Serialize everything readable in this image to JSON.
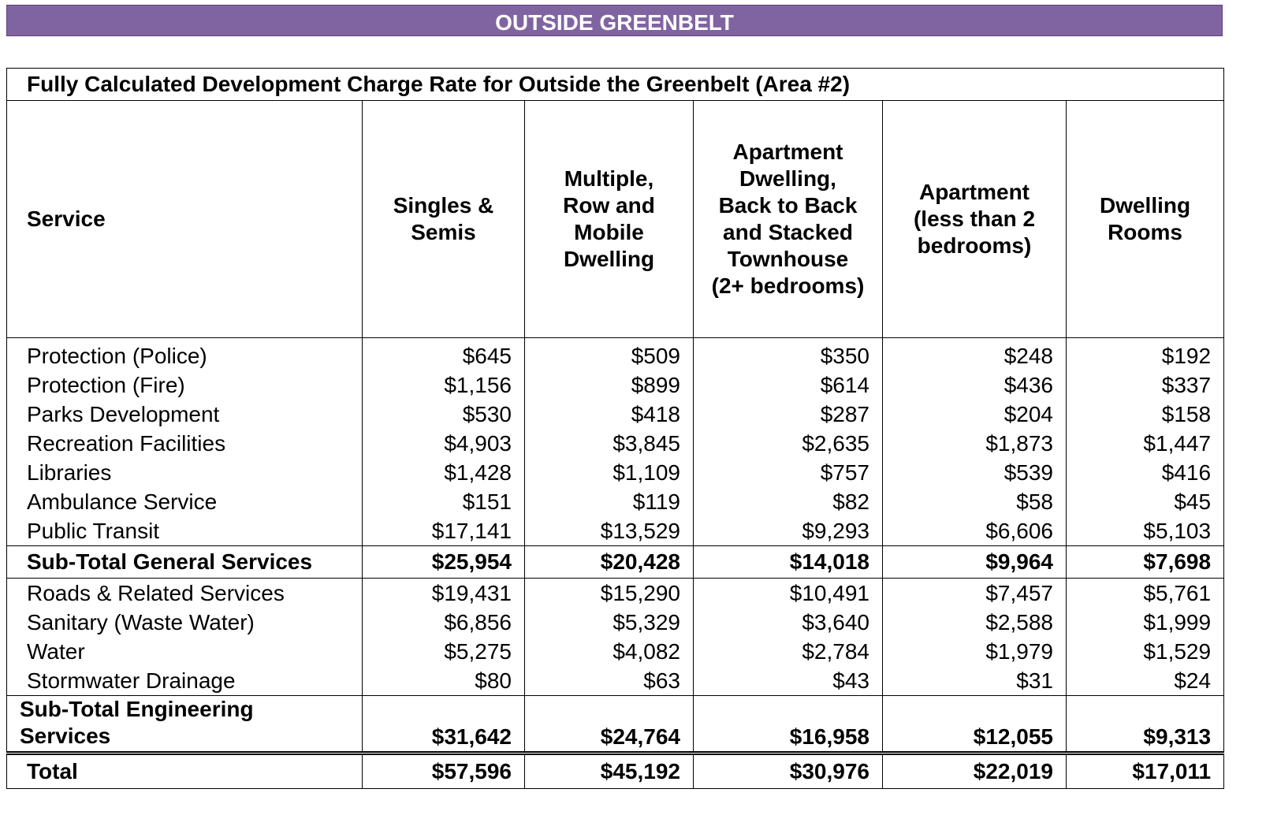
{
  "banner": {
    "title": "OUTSIDE GREENBELT"
  },
  "table": {
    "title": "Fully Calculated Development Charge Rate for Outside the Greenbelt (Area #2)",
    "service_header": "Service",
    "columns": [
      "Singles &\nSemis",
      "Multiple,\nRow and\nMobile\nDwelling",
      "Apartment\nDwelling,\nBack to Back\nand Stacked\nTownhouse\n(2+ bedrooms)",
      "Apartment\n(less than 2\nbedrooms)",
      "Dwelling\nRooms"
    ],
    "general_rows": [
      {
        "service": "Protection (Police)",
        "values": [
          "$645",
          "$509",
          "$350",
          "$248",
          "$192"
        ]
      },
      {
        "service": "Protection (Fire)",
        "values": [
          "$1,156",
          "$899",
          "$614",
          "$436",
          "$337"
        ]
      },
      {
        "service": "Parks Development",
        "values": [
          "$530",
          "$418",
          "$287",
          "$204",
          "$158"
        ]
      },
      {
        "service": "Recreation Facilities",
        "values": [
          "$4,903",
          "$3,845",
          "$2,635",
          "$1,873",
          "$1,447"
        ]
      },
      {
        "service": "Libraries",
        "values": [
          "$1,428",
          "$1,109",
          "$757",
          "$539",
          "$416"
        ]
      },
      {
        "service": "Ambulance Service",
        "values": [
          "$151",
          "$119",
          "$82",
          "$58",
          "$45"
        ]
      },
      {
        "service": "Public Transit",
        "values": [
          "$17,141",
          "$13,529",
          "$9,293",
          "$6,606",
          "$5,103"
        ]
      }
    ],
    "subtotal_general": {
      "service": "Sub-Total General Services",
      "values": [
        "$25,954",
        "$20,428",
        "$14,018",
        "$9,964",
        "$7,698"
      ]
    },
    "engineering_rows": [
      {
        "service": "Roads & Related Services",
        "values": [
          "$19,431",
          "$15,290",
          "$10,491",
          "$7,457",
          "$5,761"
        ]
      },
      {
        "service": "Sanitary (Waste Water)",
        "values": [
          "$6,856",
          "$5,329",
          "$3,640",
          "$2,588",
          "$1,999"
        ]
      },
      {
        "service": "Water",
        "values": [
          "$5,275",
          "$4,082",
          "$2,784",
          "$1,979",
          "$1,529"
        ]
      },
      {
        "service": "Stormwater Drainage",
        "values": [
          "$80",
          "$63",
          "$43",
          "$31",
          "$24"
        ]
      }
    ],
    "subtotal_engineering": {
      "service": "Sub-Total Engineering\nServices",
      "values": [
        "$31,642",
        "$24,764",
        "$16,958",
        "$12,055",
        "$9,313"
      ]
    },
    "total": {
      "service": "Total",
      "values": [
        "$57,596",
        "$45,192",
        "$30,976",
        "$22,019",
        "$17,011"
      ]
    }
  }
}
